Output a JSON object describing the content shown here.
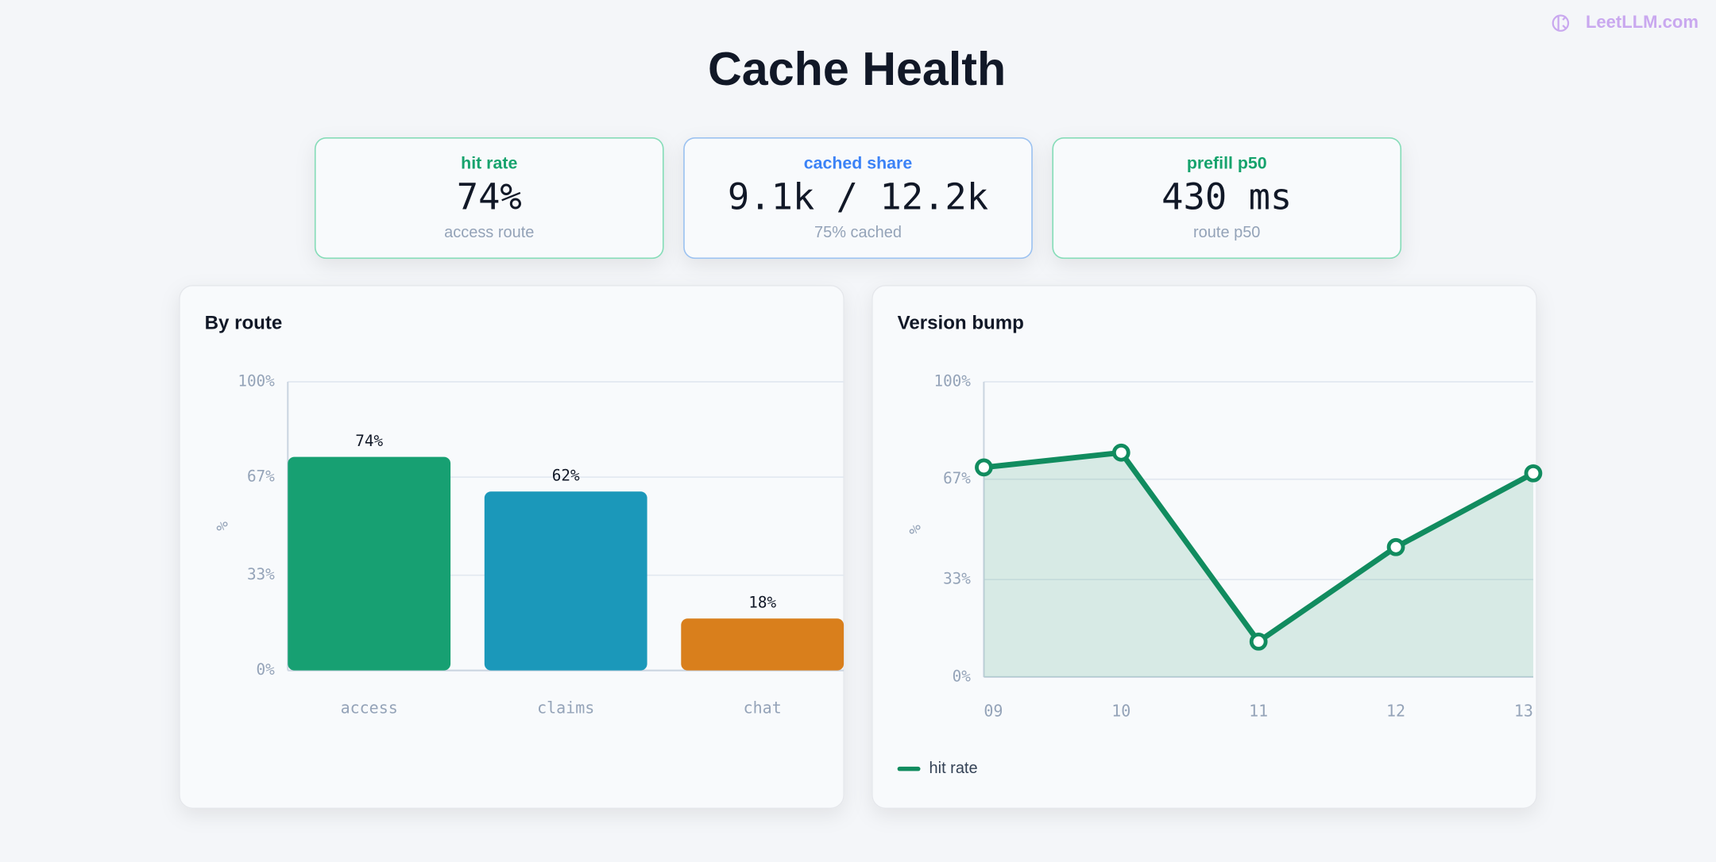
{
  "watermark": "LeetLLM.com",
  "title": "Cache Health",
  "kpis": [
    {
      "label": "hit rate",
      "value": "74%",
      "sub": "access route"
    },
    {
      "label": "cached share",
      "value": "9.1k / 12.2k",
      "sub": "75% cached"
    },
    {
      "label": "prefill p50",
      "value": "430 ms",
      "sub": "route p50"
    }
  ],
  "chart_data": [
    {
      "type": "bar",
      "title": "By route",
      "y_label": "%",
      "categories": [
        "access",
        "claims",
        "chat"
      ],
      "values": [
        74,
        62,
        18
      ],
      "value_labels": [
        "74%",
        "62%",
        "18%"
      ],
      "colors": [
        "#17a072",
        "#1b98ba",
        "#d97f1c"
      ],
      "ylim": [
        0,
        100
      ],
      "yticks": [
        {
          "value": 0,
          "label": "0%"
        },
        {
          "value": 33,
          "label": "33%"
        },
        {
          "value": 67,
          "label": "67%"
        },
        {
          "value": 100,
          "label": "100%"
        }
      ],
      "grid": true
    },
    {
      "type": "line",
      "title": "Version bump",
      "y_label": "%",
      "x": [
        "09",
        "10",
        "11",
        "12",
        "13"
      ],
      "series": [
        {
          "name": "hit rate",
          "color": "#118c5f",
          "values": [
            71,
            76,
            12,
            44,
            69
          ]
        }
      ],
      "ylim": [
        0,
        100
      ],
      "yticks": [
        {
          "value": 0,
          "label": "0%"
        },
        {
          "value": 33,
          "label": "33%"
        },
        {
          "value": 67,
          "label": "67%"
        },
        {
          "value": 100,
          "label": "100%"
        }
      ],
      "grid": true,
      "area": true,
      "legend": "bottom-left"
    }
  ]
}
